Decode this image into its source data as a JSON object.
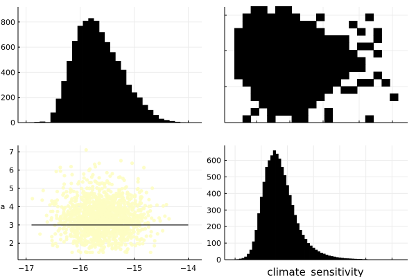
{
  "chart_data": [
    {
      "type": "bar",
      "panel": "top-left",
      "x": [
        -16.9,
        -16.8,
        -16.7,
        -16.6,
        -16.5,
        -16.4,
        -16.3,
        -16.2,
        -16.1,
        -16.0,
        -15.9,
        -15.8,
        -15.7,
        -15.6,
        -15.5,
        -15.4,
        -15.3,
        -15.2,
        -15.1,
        -15.0,
        -14.9,
        -14.8,
        -14.7,
        -14.6,
        -14.5,
        -14.4,
        -14.3,
        -14.2,
        -14.1,
        -14.0
      ],
      "values": [
        3,
        5,
        8,
        4,
        80,
        190,
        330,
        490,
        650,
        770,
        810,
        830,
        810,
        720,
        640,
        560,
        490,
        420,
        300,
        240,
        200,
        140,
        100,
        60,
        30,
        20,
        12,
        6,
        3,
        2
      ],
      "xlim": [
        -17.15,
        -13.75
      ],
      "ylim": [
        0,
        920
      ],
      "y_ticks": [
        0,
        200,
        400,
        600,
        800
      ],
      "y_tick_labels": [
        "0",
        "200",
        "400",
        "600",
        "800"
      ],
      "grid": true
    },
    {
      "type": "heatmap",
      "panel": "top-right",
      "cells": [
        [
          2,
          10
        ],
        [
          3,
          10
        ],
        [
          5,
          10
        ],
        [
          6,
          10
        ],
        [
          1,
          9
        ],
        [
          2,
          9
        ],
        [
          3,
          9
        ],
        [
          4,
          9
        ],
        [
          5,
          9
        ],
        [
          6,
          9
        ],
        [
          7,
          9
        ],
        [
          10,
          9
        ],
        [
          1,
          8
        ],
        [
          2,
          8
        ],
        [
          3,
          8
        ],
        [
          4,
          8
        ],
        [
          5,
          8
        ],
        [
          6,
          8
        ],
        [
          7,
          8
        ],
        [
          8,
          8
        ],
        [
          9,
          8
        ],
        [
          14,
          8
        ],
        [
          0,
          7
        ],
        [
          1,
          7
        ],
        [
          2,
          7
        ],
        [
          3,
          7
        ],
        [
          4,
          7
        ],
        [
          5,
          7
        ],
        [
          6,
          7
        ],
        [
          7,
          7
        ],
        [
          8,
          7
        ],
        [
          9,
          7
        ],
        [
          10,
          7
        ],
        [
          15,
          7
        ],
        [
          0,
          6
        ],
        [
          1,
          6
        ],
        [
          2,
          6
        ],
        [
          3,
          6
        ],
        [
          4,
          6
        ],
        [
          5,
          6
        ],
        [
          6,
          6
        ],
        [
          7,
          6
        ],
        [
          8,
          6
        ],
        [
          9,
          6
        ],
        [
          10,
          6
        ],
        [
          11,
          6
        ],
        [
          12,
          6
        ],
        [
          13,
          6
        ],
        [
          0,
          5
        ],
        [
          1,
          5
        ],
        [
          2,
          5
        ],
        [
          3,
          5
        ],
        [
          4,
          5
        ],
        [
          5,
          5
        ],
        [
          6,
          5
        ],
        [
          7,
          5
        ],
        [
          8,
          5
        ],
        [
          9,
          5
        ],
        [
          10,
          5
        ],
        [
          11,
          5
        ],
        [
          12,
          5
        ],
        [
          13,
          5
        ],
        [
          0,
          4
        ],
        [
          1,
          4
        ],
        [
          2,
          4
        ],
        [
          3,
          4
        ],
        [
          4,
          4
        ],
        [
          5,
          4
        ],
        [
          6,
          4
        ],
        [
          7,
          4
        ],
        [
          8,
          4
        ],
        [
          9,
          4
        ],
        [
          10,
          4
        ],
        [
          11,
          4
        ],
        [
          12,
          4
        ],
        [
          13,
          4
        ],
        [
          14,
          4
        ],
        [
          0,
          3
        ],
        [
          1,
          3
        ],
        [
          2,
          3
        ],
        [
          3,
          3
        ],
        [
          4,
          3
        ],
        [
          5,
          3
        ],
        [
          6,
          3
        ],
        [
          7,
          3
        ],
        [
          8,
          3
        ],
        [
          9,
          3
        ],
        [
          10,
          3
        ],
        [
          11,
          3
        ],
        [
          12,
          3
        ],
        [
          13,
          3
        ],
        [
          14,
          3
        ],
        [
          15,
          3
        ],
        [
          0,
          2
        ],
        [
          1,
          2
        ],
        [
          2,
          2
        ],
        [
          3,
          2
        ],
        [
          4,
          2
        ],
        [
          5,
          2
        ],
        [
          6,
          2
        ],
        [
          7,
          2
        ],
        [
          8,
          2
        ],
        [
          9,
          2
        ],
        [
          10,
          2
        ],
        [
          11,
          2
        ],
        [
          12,
          2
        ],
        [
          13,
          2
        ],
        [
          14,
          2
        ],
        [
          15,
          2
        ],
        [
          0,
          1
        ],
        [
          1,
          1
        ],
        [
          2,
          1
        ],
        [
          3,
          1
        ],
        [
          4,
          1
        ],
        [
          5,
          1
        ],
        [
          6,
          1
        ],
        [
          7,
          1
        ],
        [
          8,
          1
        ],
        [
          9,
          1
        ],
        [
          10,
          1
        ],
        [
          11,
          1
        ],
        [
          12,
          1
        ],
        [
          13,
          1
        ],
        [
          1,
          0
        ],
        [
          2,
          0
        ],
        [
          3,
          0
        ],
        [
          4,
          0
        ],
        [
          5,
          0
        ],
        [
          6,
          0
        ],
        [
          7,
          0
        ],
        [
          8,
          0
        ],
        [
          9,
          0
        ],
        [
          10,
          0
        ],
        [
          11,
          0
        ],
        [
          12,
          0
        ],
        [
          2,
          -1
        ],
        [
          3,
          -1
        ],
        [
          4,
          -1
        ],
        [
          5,
          -1
        ],
        [
          6,
          -1
        ],
        [
          7,
          -1
        ],
        [
          8,
          -1
        ],
        [
          9,
          -1
        ],
        [
          10,
          -1
        ],
        [
          11,
          -1
        ],
        [
          2,
          -2
        ],
        [
          3,
          -2
        ],
        [
          4,
          -2
        ],
        [
          5,
          -2
        ],
        [
          6,
          -2
        ],
        [
          7,
          -2
        ],
        [
          8,
          -2
        ],
        [
          9,
          -2
        ],
        [
          10,
          -2
        ],
        [
          3,
          -3
        ],
        [
          4,
          -3
        ],
        [
          5,
          -3
        ],
        [
          6,
          -3
        ],
        [
          7,
          -3
        ],
        [
          8,
          -3
        ],
        [
          9,
          -3
        ],
        [
          2,
          -4
        ],
        [
          4,
          -4
        ],
        [
          5,
          -4
        ],
        [
          6,
          -4
        ],
        [
          7,
          -4
        ],
        [
          8,
          -4
        ],
        [
          11,
          -4
        ],
        [
          1,
          -5
        ],
        [
          4,
          -5
        ],
        [
          7,
          -5
        ],
        [
          8,
          -5
        ],
        [
          11,
          -5
        ],
        [
          16,
          -5
        ],
        [
          4,
          8
        ],
        [
          16,
          9
        ],
        [
          17,
          7
        ],
        [
          15,
          5
        ],
        [
          16,
          5
        ],
        [
          17,
          6
        ],
        [
          17,
          4
        ],
        [
          15,
          0
        ],
        [
          16,
          0
        ],
        [
          17,
          1
        ],
        [
          13,
          -1
        ],
        [
          14,
          -1
        ],
        [
          18,
          0
        ],
        [
          19,
          -2
        ]
      ],
      "grid": true
    },
    {
      "type": "scatter",
      "panel": "bottom-left",
      "xlim": [
        -17.15,
        -13.75
      ],
      "ylim": [
        1.1,
        7.35
      ],
      "x_ticks": [
        -17,
        -16,
        -15,
        -14
      ],
      "x_tick_labels": [
        "−17",
        "−16",
        "−15",
        "−14"
      ],
      "y_ticks": [
        2,
        3,
        4,
        5,
        6,
        7
      ],
      "y_tick_labels": [
        "2",
        "3",
        "4",
        "5",
        "6",
        "7"
      ],
      "point_color": "#fdfdc3",
      "line": {
        "x": [
          -16.9,
          -14.0
        ],
        "y": [
          3.0,
          3.0
        ],
        "color": "#1a1a1a"
      },
      "ylabel": "a",
      "grid": true
    },
    {
      "type": "bar",
      "panel": "bottom-right",
      "xlabel": "climate_sensitivity",
      "x": [
        1.1,
        1.2,
        1.3,
        1.4,
        1.5,
        1.6,
        1.7,
        1.8,
        1.9,
        2.0,
        2.1,
        2.2,
        2.3,
        2.4,
        2.5,
        2.6,
        2.7,
        2.8,
        2.9,
        3.0,
        3.1,
        3.2,
        3.3,
        3.4,
        3.5,
        3.6,
        3.7,
        3.8,
        3.9,
        4.0,
        4.1,
        4.2,
        4.3,
        4.4,
        4.5,
        4.6,
        4.7,
        4.8,
        4.9,
        5.0,
        5.1,
        5.2,
        5.3,
        5.4,
        5.5,
        5.6,
        5.7,
        5.8,
        5.9,
        6.0,
        6.1,
        6.2,
        6.3,
        6.4,
        6.5,
        6.6,
        6.7,
        6.8,
        6.9,
        7.0
      ],
      "values": [
        3,
        6,
        10,
        18,
        35,
        60,
        110,
        180,
        280,
        380,
        470,
        560,
        600,
        630,
        660,
        640,
        610,
        560,
        510,
        450,
        390,
        330,
        270,
        220,
        180,
        150,
        125,
        100,
        85,
        72,
        60,
        50,
        42,
        36,
        30,
        25,
        21,
        18,
        15,
        13,
        11,
        9,
        8,
        7,
        6,
        5,
        4,
        4,
        3,
        3,
        2,
        2,
        2,
        1,
        1,
        1,
        1,
        1,
        1,
        1
      ],
      "xlim": [
        0.6,
        7.6
      ],
      "ylim": [
        0,
        690
      ],
      "y_ticks": [
        0,
        100,
        200,
        300,
        400,
        500,
        600
      ],
      "y_tick_labels": [
        "0",
        "100",
        "200",
        "300",
        "400",
        "500",
        "600"
      ],
      "grid": true
    }
  ]
}
